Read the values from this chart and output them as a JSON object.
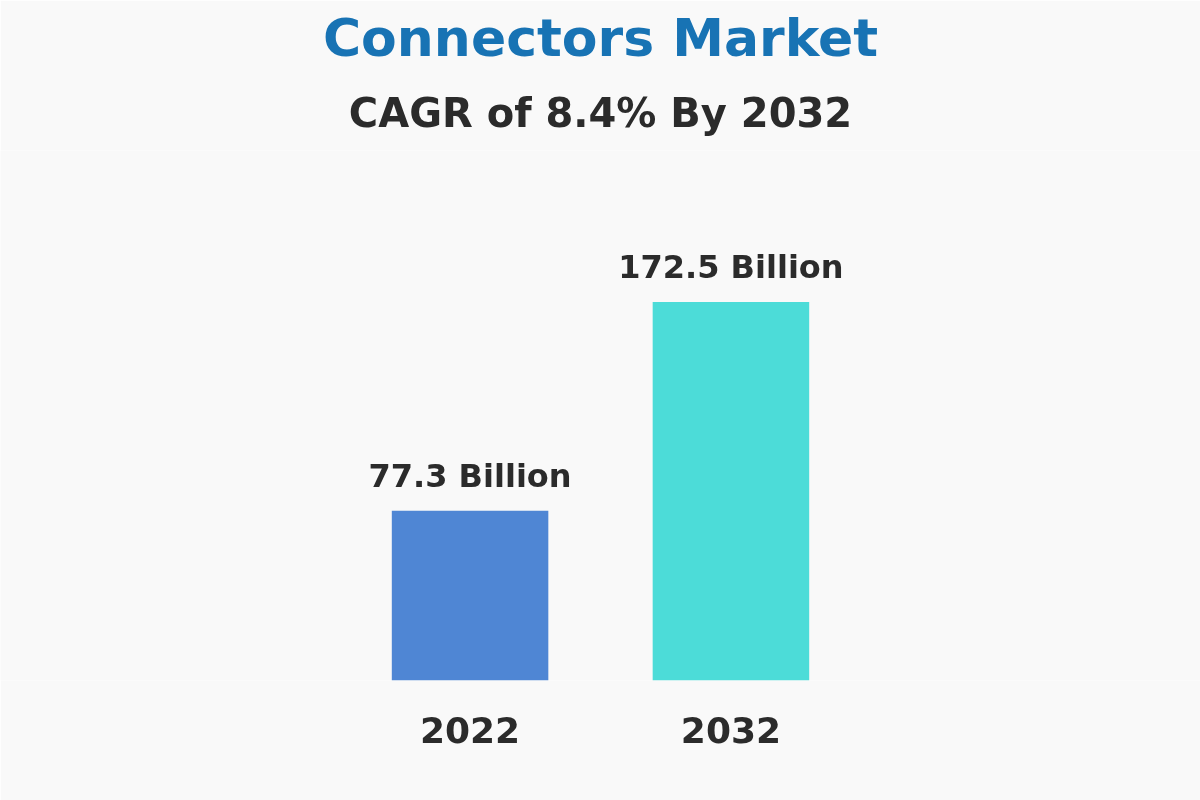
{
  "chart_data": {
    "type": "bar",
    "title": "Connectors Market",
    "subtitle": "CAGR of 8.4% By 2032",
    "categories": [
      "2022",
      "2032"
    ],
    "values": [
      77.3,
      172.5
    ],
    "colors": [
      "#4f86d4",
      "#4cdcd8"
    ],
    "value_labels": [
      "77.3 Billion",
      "172.5 Billion"
    ]
  }
}
